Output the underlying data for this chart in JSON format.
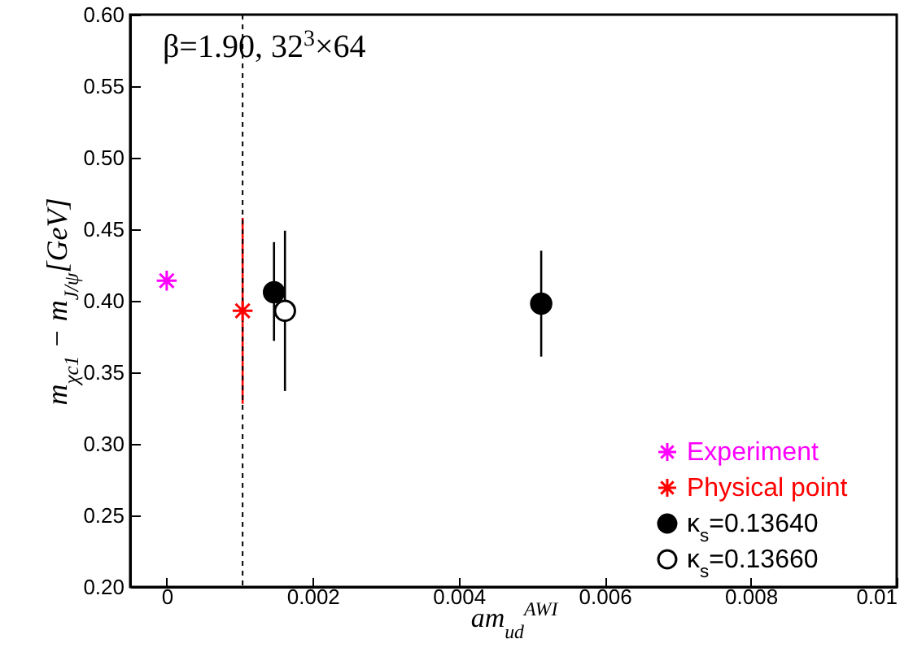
{
  "chart_data": {
    "type": "scatter",
    "xlabel": "am$_{ud}$$^{AWI}$",
    "ylabel": "m$_{χc1}$ − m$_{J/ψ}$[GeV]",
    "annotations": [
      "β=1.90, 32$^{3}$×64"
    ],
    "xlim": [
      -0.0005,
      0.01
    ],
    "xticks": [
      0,
      0.002,
      0.004,
      0.006,
      0.008,
      0.01
    ],
    "ylim": [
      0.2,
      0.6
    ],
    "yticks": [
      {
        "value": 0.2,
        "label": "0.20"
      },
      {
        "value": 0.25,
        "label": "0.25"
      },
      {
        "value": 0.3,
        "label": "0.30"
      },
      {
        "value": 0.35,
        "label": "0.35"
      },
      {
        "value": 0.4,
        "label": "0.40"
      },
      {
        "value": 0.45,
        "label": "0.45"
      },
      {
        "value": 0.5,
        "label": "0.50"
      },
      {
        "value": 0.55,
        "label": "0.55"
      },
      {
        "value": 0.6,
        "label": "0.60"
      }
    ],
    "grid": false,
    "legend": "bottom right",
    "ref_lines": [
      {
        "axis": "x",
        "value": 0.00104,
        "color": "#000000",
        "line_style": "dashed"
      }
    ],
    "series": [
      {
        "name": "Experiment",
        "color": "#ff00ff",
        "marker": "cross",
        "x": [
          0
        ],
        "values": [
          0.414
        ]
      },
      {
        "name": "Physical point",
        "color": "#ff0000",
        "marker": "cross",
        "x": [
          0.00104
        ],
        "values": [
          0.393
        ],
        "errors": [
          [
            0.328,
            0.458
          ]
        ]
      },
      {
        "name": "κ$_{s}$=0.13640",
        "color": "#000000",
        "marker": "circle",
        "x": [
          0.00147,
          0.00513
        ],
        "values": [
          0.406,
          0.398
        ],
        "errors": [
          [
            0.372,
            0.441
          ],
          [
            0.361,
            0.435
          ]
        ]
      },
      {
        "name": "κ$_{s}$=0.13660",
        "color": "#ffffff",
        "marker": "circle",
        "x": [
          0.00162
        ],
        "values": [
          0.393
        ],
        "errors": [
          [
            0.337,
            0.449
          ]
        ]
      }
    ]
  }
}
